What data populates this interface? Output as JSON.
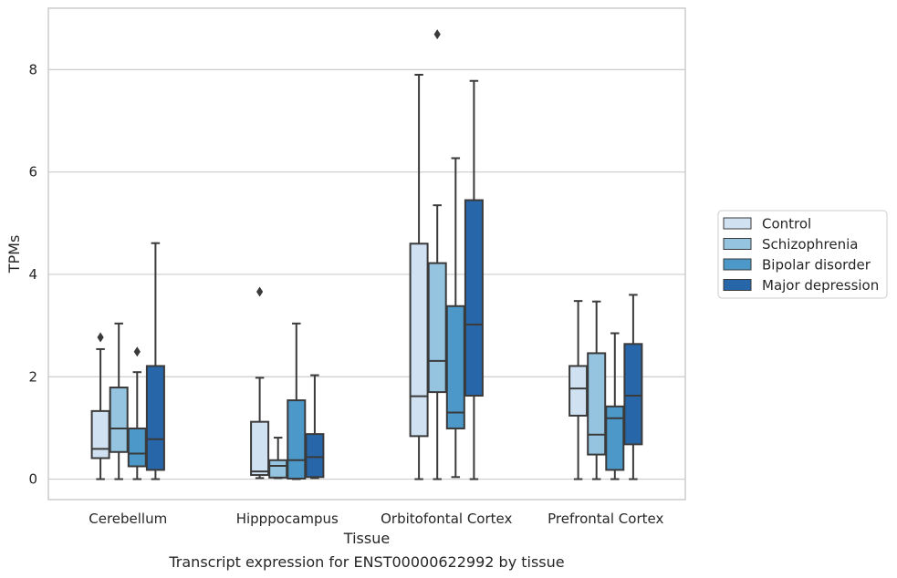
{
  "chart_data": {
    "type": "boxplot",
    "caption": "Transcript expression for ENST00000622992 by tissue",
    "xlabel": "Tissue",
    "ylabel": "TPMs",
    "ylim": [
      -0.4,
      9.2
    ],
    "yticks": [
      0,
      2,
      4,
      6,
      8
    ],
    "grid": "horizontal",
    "legend_position": "right",
    "categories": [
      "Cerebellum",
      "Hipppocampus",
      "Orbitofontal Cortex",
      "Prefrontal Cortex"
    ],
    "series": [
      {
        "name": "Control",
        "color": "#d0e1f2",
        "boxes": [
          {
            "whislo": 0.0,
            "q1": 0.41,
            "med": 0.59,
            "q3": 1.33,
            "whishi": 2.54,
            "fliers": [
              2.77
            ]
          },
          {
            "whislo": 0.02,
            "q1": 0.08,
            "med": 0.15,
            "q3": 1.12,
            "whishi": 1.98,
            "fliers": [
              3.66
            ]
          },
          {
            "whislo": 0.0,
            "q1": 0.84,
            "med": 1.62,
            "q3": 4.6,
            "whishi": 7.9,
            "fliers": []
          },
          {
            "whislo": 0.0,
            "q1": 1.24,
            "med": 1.77,
            "q3": 2.21,
            "whishi": 3.48,
            "fliers": []
          }
        ]
      },
      {
        "name": "Schizophrenia",
        "color": "#94c4df",
        "boxes": [
          {
            "whislo": 0.0,
            "q1": 0.53,
            "med": 0.99,
            "q3": 1.79,
            "whishi": 3.04,
            "fliers": []
          },
          {
            "whislo": 0.02,
            "q1": 0.03,
            "med": 0.26,
            "q3": 0.37,
            "whishi": 0.81,
            "fliers": []
          },
          {
            "whislo": 0.0,
            "q1": 1.7,
            "med": 2.31,
            "q3": 4.22,
            "whishi": 5.35,
            "fliers": [
              8.69
            ]
          },
          {
            "whislo": 0.0,
            "q1": 0.48,
            "med": 0.87,
            "q3": 2.46,
            "whishi": 3.47,
            "fliers": []
          }
        ]
      },
      {
        "name": "Bipolar disorder",
        "color": "#4b98c9",
        "boxes": [
          {
            "whislo": 0.0,
            "q1": 0.25,
            "med": 0.5,
            "q3": 0.99,
            "whishi": 2.09,
            "fliers": [
              2.49
            ]
          },
          {
            "whislo": 0.0,
            "q1": 0.01,
            "med": 0.37,
            "q3": 1.54,
            "whishi": 3.04,
            "fliers": []
          },
          {
            "whislo": 0.04,
            "q1": 0.99,
            "med": 1.3,
            "q3": 3.38,
            "whishi": 6.27,
            "fliers": []
          },
          {
            "whislo": 0.0,
            "q1": 0.18,
            "med": 1.19,
            "q3": 1.42,
            "whishi": 2.85,
            "fliers": []
          }
        ]
      },
      {
        "name": "Major depression",
        "color": "#2666a9",
        "boxes": [
          {
            "whislo": 0.0,
            "q1": 0.18,
            "med": 0.78,
            "q3": 2.21,
            "whishi": 4.61,
            "fliers": []
          },
          {
            "whislo": 0.02,
            "q1": 0.04,
            "med": 0.43,
            "q3": 0.88,
            "whishi": 2.03,
            "fliers": []
          },
          {
            "whislo": 0.0,
            "q1": 1.63,
            "med": 3.02,
            "q3": 5.45,
            "whishi": 7.78,
            "fliers": []
          },
          {
            "whislo": 0.0,
            "q1": 0.68,
            "med": 1.63,
            "q3": 2.64,
            "whishi": 3.6,
            "fliers": []
          }
        ]
      }
    ]
  }
}
